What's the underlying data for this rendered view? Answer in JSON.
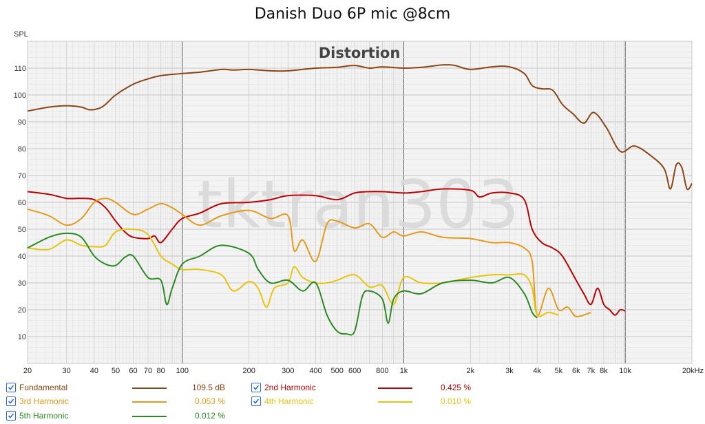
{
  "title": "Danish Duo 6P mic @8cm",
  "chart_data": {
    "type": "line",
    "title": "Danish Duo 6P mic @8cm",
    "subtitle": "Distortion",
    "ylabel": "SPL",
    "watermark": "tktran303",
    "x_scale": "log",
    "xlim": [
      20,
      20000
    ],
    "ylim": [
      0,
      120
    ],
    "x_ticks": [
      {
        "v": 20,
        "label": "20"
      },
      {
        "v": 30,
        "label": "30"
      },
      {
        "v": 40,
        "label": "40"
      },
      {
        "v": 50,
        "label": "50"
      },
      {
        "v": 60,
        "label": "60"
      },
      {
        "v": 70,
        "label": "70"
      },
      {
        "v": 80,
        "label": "80"
      },
      {
        "v": 100,
        "label": "100"
      },
      {
        "v": 200,
        "label": "200"
      },
      {
        "v": 300,
        "label": "300"
      },
      {
        "v": 400,
        "label": "400"
      },
      {
        "v": 500,
        "label": "500"
      },
      {
        "v": 600,
        "label": "600"
      },
      {
        "v": 800,
        "label": "800"
      },
      {
        "v": 1000,
        "label": "1k"
      },
      {
        "v": 2000,
        "label": "2k"
      },
      {
        "v": 3000,
        "label": "3k"
      },
      {
        "v": 4000,
        "label": "4k"
      },
      {
        "v": 5000,
        "label": "5k"
      },
      {
        "v": 6000,
        "label": "6k"
      },
      {
        "v": 7000,
        "label": "7k"
      },
      {
        "v": 8000,
        "label": "8k"
      },
      {
        "v": 10000,
        "label": "10k"
      },
      {
        "v": 20000,
        "label": "20kHz"
      }
    ],
    "y_ticks": [
      10,
      20,
      30,
      40,
      50,
      60,
      70,
      80,
      90,
      100,
      110
    ],
    "series": [
      {
        "name": "Fundamental",
        "color": "#8b4513",
        "value": "109.5 dB",
        "points": [
          [
            20,
            94
          ],
          [
            25,
            95.5
          ],
          [
            30,
            96
          ],
          [
            35,
            95.5
          ],
          [
            38,
            94.5
          ],
          [
            42,
            95
          ],
          [
            45,
            96.5
          ],
          [
            50,
            100
          ],
          [
            60,
            104
          ],
          [
            70,
            106
          ],
          [
            80,
            107.2
          ],
          [
            100,
            108
          ],
          [
            120,
            108.5
          ],
          [
            150,
            109.5
          ],
          [
            170,
            109.3
          ],
          [
            200,
            109.5
          ],
          [
            250,
            109
          ],
          [
            300,
            109
          ],
          [
            400,
            110
          ],
          [
            500,
            110.3
          ],
          [
            600,
            111
          ],
          [
            700,
            110
          ],
          [
            800,
            110.5
          ],
          [
            1000,
            110
          ],
          [
            1200,
            110.3
          ],
          [
            1500,
            111.2
          ],
          [
            1700,
            111
          ],
          [
            2000,
            109.5
          ],
          [
            2500,
            110.5
          ],
          [
            3000,
            110.5
          ],
          [
            3500,
            108
          ],
          [
            3800,
            103.5
          ],
          [
            4200,
            102.3
          ],
          [
            4700,
            101.8
          ],
          [
            5200,
            96.5
          ],
          [
            5800,
            93
          ],
          [
            6500,
            89.5
          ],
          [
            7200,
            93.5
          ],
          [
            8200,
            88
          ],
          [
            9500,
            79
          ],
          [
            11000,
            81
          ],
          [
            13000,
            77.5
          ],
          [
            15000,
            72.5
          ],
          [
            16000,
            65
          ],
          [
            17000,
            74
          ],
          [
            18000,
            73
          ],
          [
            19000,
            65
          ],
          [
            20000,
            67
          ]
        ]
      },
      {
        "name": "2nd Harmonic",
        "color": "#c00000",
        "value": "0.425 %",
        "points": [
          [
            20,
            64
          ],
          [
            25,
            63
          ],
          [
            30,
            61.5
          ],
          [
            35,
            61.5
          ],
          [
            40,
            61
          ],
          [
            45,
            58
          ],
          [
            50,
            53
          ],
          [
            55,
            49
          ],
          [
            60,
            47
          ],
          [
            70,
            46.5
          ],
          [
            75,
            47.5
          ],
          [
            80,
            45
          ],
          [
            90,
            50
          ],
          [
            100,
            54
          ],
          [
            120,
            56
          ],
          [
            150,
            59.5
          ],
          [
            200,
            60
          ],
          [
            250,
            61
          ],
          [
            300,
            62.5
          ],
          [
            400,
            62.5
          ],
          [
            500,
            61
          ],
          [
            600,
            63.5
          ],
          [
            700,
            64
          ],
          [
            800,
            64
          ],
          [
            1000,
            63.5
          ],
          [
            1200,
            64
          ],
          [
            1500,
            65
          ],
          [
            2000,
            64.5
          ],
          [
            2200,
            62
          ],
          [
            2500,
            63.5
          ],
          [
            3000,
            63.5
          ],
          [
            3500,
            61
          ],
          [
            3800,
            50
          ],
          [
            4200,
            45
          ],
          [
            4700,
            43
          ],
          [
            5200,
            40
          ],
          [
            6000,
            31
          ],
          [
            6500,
            26
          ],
          [
            7000,
            22
          ],
          [
            7500,
            28
          ],
          [
            8000,
            22
          ],
          [
            8500,
            20
          ],
          [
            9000,
            18
          ],
          [
            9500,
            20
          ],
          [
            10000,
            19.5
          ]
        ]
      },
      {
        "name": "3rd Harmonic",
        "color": "#e69a1a",
        "value": "0.053 %",
        "points": [
          [
            20,
            57.5
          ],
          [
            25,
            55
          ],
          [
            30,
            51.5
          ],
          [
            35,
            54
          ],
          [
            40,
            60
          ],
          [
            45,
            61.5
          ],
          [
            50,
            60
          ],
          [
            60,
            55.5
          ],
          [
            70,
            57.5
          ],
          [
            80,
            59.5
          ],
          [
            90,
            58
          ],
          [
            100,
            55.5
          ],
          [
            120,
            51.5
          ],
          [
            150,
            55
          ],
          [
            200,
            57
          ],
          [
            250,
            54
          ],
          [
            300,
            55
          ],
          [
            320,
            42
          ],
          [
            350,
            46
          ],
          [
            400,
            38
          ],
          [
            450,
            52
          ],
          [
            500,
            53
          ],
          [
            600,
            50.5
          ],
          [
            700,
            52
          ],
          [
            800,
            47
          ],
          [
            900,
            49
          ],
          [
            1000,
            47.5
          ],
          [
            1200,
            49
          ],
          [
            1500,
            47
          ],
          [
            2000,
            46.5
          ],
          [
            2500,
            45
          ],
          [
            3000,
            45
          ],
          [
            3500,
            43
          ],
          [
            3800,
            38
          ],
          [
            4000,
            18
          ],
          [
            4500,
            28
          ],
          [
            5000,
            20
          ],
          [
            5500,
            21
          ],
          [
            6000,
            17.5
          ],
          [
            7000,
            19
          ]
        ]
      },
      {
        "name": "4th Harmonic",
        "color": "#e8c40c",
        "value": "0.010 %",
        "points": [
          [
            20,
            43
          ],
          [
            25,
            42.5
          ],
          [
            30,
            46
          ],
          [
            35,
            44
          ],
          [
            40,
            43.5
          ],
          [
            45,
            44
          ],
          [
            50,
            49
          ],
          [
            60,
            50
          ],
          [
            70,
            48
          ],
          [
            80,
            40
          ],
          [
            90,
            37
          ],
          [
            100,
            35
          ],
          [
            120,
            35
          ],
          [
            150,
            33
          ],
          [
            170,
            27
          ],
          [
            200,
            30.5
          ],
          [
            220,
            28
          ],
          [
            240,
            21
          ],
          [
            260,
            28
          ],
          [
            300,
            30
          ],
          [
            320,
            36
          ],
          [
            350,
            32
          ],
          [
            400,
            30
          ],
          [
            450,
            30
          ],
          [
            500,
            31
          ],
          [
            600,
            33
          ],
          [
            700,
            28.5
          ],
          [
            800,
            29
          ],
          [
            900,
            22
          ],
          [
            1000,
            32
          ],
          [
            1200,
            30
          ],
          [
            1500,
            30
          ],
          [
            2000,
            32
          ],
          [
            2500,
            33
          ],
          [
            3000,
            33
          ],
          [
            3500,
            33
          ],
          [
            3800,
            28
          ],
          [
            4000,
            18
          ],
          [
            4500,
            19
          ],
          [
            5000,
            18
          ]
        ]
      },
      {
        "name": "5th Harmonic",
        "color": "#2a8a22",
        "value": "0.012 %",
        "points": [
          [
            20,
            43
          ],
          [
            25,
            47
          ],
          [
            30,
            48.5
          ],
          [
            35,
            47
          ],
          [
            40,
            40
          ],
          [
            45,
            37
          ],
          [
            50,
            36.5
          ],
          [
            55,
            39.5
          ],
          [
            60,
            40
          ],
          [
            70,
            32
          ],
          [
            80,
            31
          ],
          [
            85,
            22
          ],
          [
            90,
            28
          ],
          [
            100,
            37
          ],
          [
            120,
            40
          ],
          [
            150,
            44
          ],
          [
            200,
            41
          ],
          [
            220,
            35
          ],
          [
            250,
            30
          ],
          [
            300,
            31
          ],
          [
            350,
            27
          ],
          [
            400,
            30
          ],
          [
            450,
            18
          ],
          [
            500,
            12
          ],
          [
            550,
            11
          ],
          [
            600,
            12
          ],
          [
            650,
            25
          ],
          [
            700,
            27
          ],
          [
            800,
            24
          ],
          [
            850,
            15
          ],
          [
            900,
            24
          ],
          [
            1000,
            27
          ],
          [
            1200,
            26
          ],
          [
            1500,
            30
          ],
          [
            2000,
            31
          ],
          [
            2500,
            30
          ],
          [
            3000,
            32
          ],
          [
            3500,
            26
          ],
          [
            3800,
            19
          ],
          [
            4000,
            17
          ]
        ]
      }
    ]
  },
  "legend": {
    "fundamental": {
      "label": "Fundamental",
      "value": "109.5 dB",
      "color": "#8b4513"
    },
    "h2": {
      "label": "2nd Harmonic",
      "value": "0.425 %",
      "color": "#c00000"
    },
    "h3": {
      "label": "3rd Harmonic",
      "value": "0.053 %",
      "color": "#e69a1a"
    },
    "h4": {
      "label": "4th Harmonic",
      "value": "0.010 %",
      "color": "#e8c40c"
    },
    "h5": {
      "label": "5th Harmonic",
      "value": "0.012 %",
      "color": "#2a8a22"
    }
  }
}
